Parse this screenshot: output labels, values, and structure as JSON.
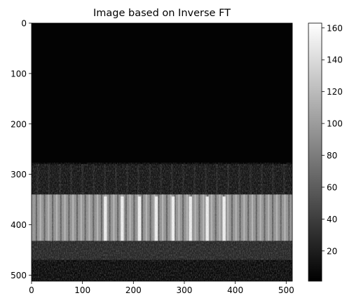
{
  "chart_data": {
    "type": "heatmap",
    "title": "Image based on Inverse FT",
    "x_ticks": [
      0,
      100,
      200,
      300,
      400,
      500
    ],
    "y_ticks": [
      0,
      100,
      200,
      300,
      400,
      500
    ],
    "xlim": [
      0,
      512
    ],
    "ylim": [
      512,
      0
    ],
    "colormap": "gray",
    "colorbar": {
      "ticks": [
        20,
        40,
        60,
        80,
        100,
        120,
        140,
        160
      ],
      "range": [
        1,
        163
      ]
    },
    "image_regions": [
      {
        "name": "dark background",
        "rows": [
          0,
          280
        ],
        "value": 3
      },
      {
        "name": "faint band",
        "rows": [
          280,
          340
        ],
        "value": 14
      },
      {
        "name": "bright vertical stripes",
        "rows": [
          340,
          432
        ],
        "value": 95
      },
      {
        "name": "lower noisy band",
        "rows": [
          432,
          470
        ],
        "value": 25
      },
      {
        "name": "bottom dark band",
        "rows": [
          470,
          512
        ],
        "value": 7
      }
    ],
    "bright_stripe_columns": [
      145,
      178,
      212,
      245,
      278,
      312,
      345,
      378
    ]
  }
}
